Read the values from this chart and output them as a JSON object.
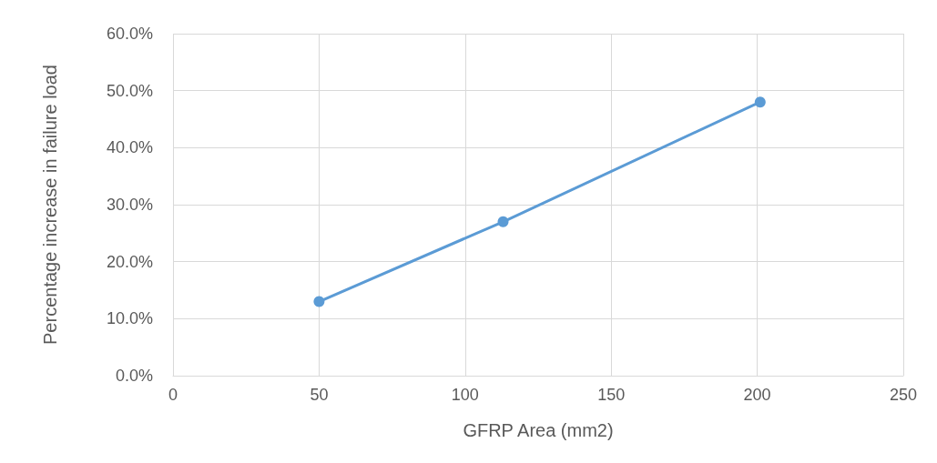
{
  "chart_data": {
    "type": "line",
    "xlabel": "GFRP Area (mm2)",
    "ylabel": "Percentage increase in failure load",
    "x": [
      50,
      113,
      201
    ],
    "series": [
      {
        "color": "#5b9bd5",
        "values": [
          13,
          27,
          48
        ]
      }
    ],
    "xlim": [
      0,
      250
    ],
    "xticks": [
      0,
      50,
      100,
      150,
      200,
      250
    ],
    "ylim": [
      0,
      60
    ],
    "yticks": [
      {
        "value": 0,
        "label": "0.0%"
      },
      {
        "value": 10,
        "label": "10.0%"
      },
      {
        "value": 20,
        "label": "20.0%"
      },
      {
        "value": 30,
        "label": "30.0%"
      },
      {
        "value": 40,
        "label": "40.0%"
      },
      {
        "value": 50,
        "label": "50.0%"
      },
      {
        "value": 60,
        "label": "60.0%"
      }
    ],
    "grid": true,
    "marker": "circle",
    "line_style": "solid"
  }
}
